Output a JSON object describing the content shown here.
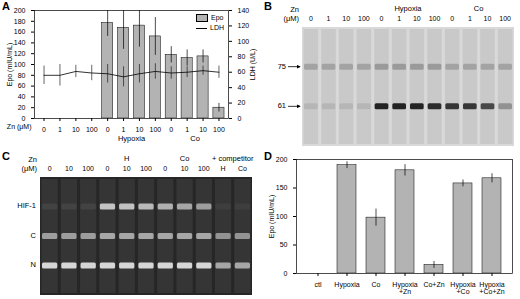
{
  "chart_data": [
    {
      "type": "bar",
      "title": "A",
      "categories": [
        "0",
        "1",
        "10",
        "100",
        "0",
        "1",
        "10",
        "100",
        "0",
        "1",
        "10",
        "100"
      ],
      "groups": [
        null,
        null,
        null,
        null,
        "Hypoxia",
        "Hypoxia",
        "Hypoxia",
        "Hypoxia",
        "Co",
        "Co",
        "Co",
        "Co"
      ],
      "xlabel": "Zn (μM)",
      "ylabel": "Epo (mIU/mL)",
      "y2label": "LDH (U/L)",
      "ylim": [
        0,
        200
      ],
      "yticks": [
        0,
        20,
        40,
        60,
        80,
        100,
        120,
        140,
        160,
        180,
        200
      ],
      "y2lim": [
        0,
        140
      ],
      "y2ticks": [
        0,
        20,
        40,
        60,
        80,
        100,
        120,
        140
      ],
      "legend": "top-right",
      "series": [
        {
          "name": "Epo",
          "type": "bar",
          "color": "#b3b3b3",
          "values": [
            0,
            0,
            0,
            0,
            177,
            168,
            172,
            152,
            118,
            112,
            115,
            20
          ],
          "errors": [
            0,
            0,
            0,
            0,
            25,
            40,
            40,
            35,
            15,
            15,
            12,
            8
          ]
        },
        {
          "name": "LDH",
          "type": "line",
          "axis": "y2",
          "color": "#000000",
          "values": [
            56,
            56,
            61,
            59,
            58,
            54,
            58,
            61,
            59,
            60,
            62,
            60
          ],
          "errors": [
            12,
            14,
            8,
            10,
            12,
            13,
            12,
            10,
            8,
            7,
            6,
            8
          ]
        }
      ]
    },
    {
      "type": "bar",
      "title": "D",
      "categories": [
        "ctl",
        "Hypoxia",
        "Co",
        "Hypoxia +Zn",
        "Co+Zn",
        "Hypoxia +Co",
        "Hypoxia +Co+Zn"
      ],
      "values": [
        0,
        190,
        98,
        181,
        15,
        158,
        167
      ],
      "errors": [
        0,
        6,
        15,
        10,
        6,
        6,
        8
      ],
      "ylabel": "Epo (mIU/mL)",
      "color": "#b3b3b3",
      "ylim": [
        0,
        200
      ],
      "yticks": [
        0,
        50,
        100,
        150,
        200
      ]
    }
  ],
  "gels": [
    {
      "panel": "B",
      "header": [
        "Zn",
        "(μM)"
      ],
      "lanes": [
        "0",
        "1",
        "10",
        "100",
        "0",
        "1",
        "10",
        "100",
        "0",
        "1",
        "10",
        "100"
      ],
      "groups": [
        null,
        null,
        null,
        null,
        "Hypoxia",
        "Hypoxia",
        "Hypoxia",
        "Hypoxia",
        "Co",
        "Co",
        "Co",
        "Co"
      ],
      "background": "#d9d9d9",
      "band_color": "#111111",
      "bands": [
        {
          "label": "75",
          "arrow": true,
          "intensity": [
            0.2,
            0.2,
            0.2,
            0.2,
            0.25,
            0.25,
            0.25,
            0.25,
            0.2,
            0.2,
            0.2,
            0.2
          ]
        },
        {
          "label": "61",
          "arrow": true,
          "intensity": [
            0.1,
            0.1,
            0.1,
            0.1,
            0.9,
            0.9,
            0.9,
            0.85,
            0.8,
            0.8,
            0.7,
            0.3
          ]
        }
      ]
    },
    {
      "panel": "C",
      "header": [
        "Zn",
        "(μM)"
      ],
      "lanes": [
        "0",
        "10",
        "100",
        "0",
        "10",
        "100",
        "0",
        "10",
        "100",
        "H",
        "Co"
      ],
      "groups": [
        null,
        null,
        null,
        "H",
        "H",
        "H",
        "Co",
        "Co",
        "Co",
        "+ competitor",
        "+ competitor"
      ],
      "background": "#262626",
      "band_color": "#f2f2f2",
      "bands": [
        {
          "label": "HIF-1",
          "arrow": false,
          "intensity": [
            0.08,
            0.08,
            0.08,
            0.75,
            0.75,
            0.7,
            0.65,
            0.6,
            0.55,
            0.05,
            0.05
          ]
        },
        {
          "label": "C",
          "arrow": false,
          "intensity": [
            0.55,
            0.55,
            0.55,
            0.6,
            0.6,
            0.6,
            0.6,
            0.6,
            0.6,
            0.5,
            0.5
          ]
        },
        {
          "label": "N",
          "arrow": false,
          "intensity": [
            0.85,
            0.85,
            0.85,
            0.85,
            0.85,
            0.85,
            0.85,
            0.85,
            0.85,
            0.6,
            0.6
          ]
        }
      ]
    }
  ]
}
